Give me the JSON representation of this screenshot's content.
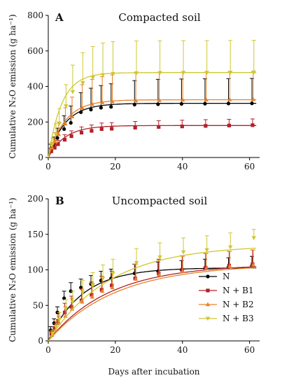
{
  "chart_data": [
    {
      "type": "scatter",
      "panel_letter": "A",
      "title": "Compacted soil",
      "ylabel": "Cumulative N₂O emission (g ha⁻¹)",
      "xlabel": "",
      "xlim": [
        0,
        63
      ],
      "ylim": [
        0,
        800
      ],
      "xticks": [
        0,
        20,
        40,
        60
      ],
      "yticks": [
        0,
        200,
        400,
        600,
        800
      ],
      "x": [
        1,
        2,
        3,
        5,
        7,
        10,
        13,
        16,
        19,
        26,
        33,
        40,
        47,
        54,
        61
      ],
      "series": [
        {
          "color": "#000000",
          "marker": "circle",
          "curve": [
            305,
            0.2
          ],
          "values": [
            50,
            75,
            110,
            160,
            195,
            255,
            270,
            280,
            285,
            298,
            300,
            302,
            303,
            304,
            305
          ],
          "errors": [
            25,
            40,
            55,
            75,
            95,
            110,
            120,
            125,
            130,
            135,
            140,
            140,
            140,
            140,
            140
          ]
        },
        {
          "color": "#b3202a",
          "marker": "square",
          "curve": [
            180,
            0.2
          ],
          "values": [
            35,
            55,
            75,
            100,
            120,
            140,
            150,
            160,
            162,
            168,
            172,
            175,
            178,
            180,
            182
          ],
          "errors": [
            12,
            18,
            22,
            28,
            30,
            32,
            33,
            34,
            34,
            35,
            35,
            35,
            35,
            35,
            35
          ]
        },
        {
          "color": "#e6822a",
          "marker": "triangle",
          "curve": [
            325,
            0.2
          ],
          "values": [
            55,
            90,
            130,
            190,
            230,
            280,
            300,
            310,
            315,
            320,
            322,
            324,
            325,
            326,
            327
          ],
          "errors": [
            30,
            50,
            70,
            90,
            110,
            130,
            140,
            145,
            150,
            155,
            155,
            155,
            155,
            155,
            155
          ]
        },
        {
          "color": "#cfc830",
          "marker": "triangle-down",
          "curve": [
            478,
            0.25
          ],
          "values": [
            75,
            130,
            190,
            290,
            370,
            420,
            450,
            465,
            472,
            476,
            477,
            478,
            478,
            479,
            480
          ],
          "errors": [
            35,
            60,
            85,
            120,
            150,
            170,
            175,
            180,
            180,
            180,
            180,
            180,
            180,
            180,
            180
          ]
        }
      ]
    },
    {
      "type": "scatter",
      "panel_letter": "B",
      "title": "Uncompacted soil",
      "ylabel": "Cumulative N₂O emission (g ha⁻¹)",
      "xlabel": "Days after incubation",
      "xlim": [
        0,
        63
      ],
      "ylim": [
        0,
        200
      ],
      "xticks": [
        0,
        20,
        40,
        60
      ],
      "yticks": [
        0,
        50,
        100,
        150,
        200
      ],
      "x": [
        1,
        2,
        3,
        5,
        7,
        10,
        13,
        16,
        19,
        26,
        33,
        40,
        47,
        54,
        61
      ],
      "legend": [
        "N",
        "N + B1",
        "N + B2",
        "N + B3"
      ],
      "legend_position": "bottom-right",
      "series": [
        {
          "name": "N",
          "color": "#000000",
          "marker": "circle",
          "curve": [
            103,
            0.1
          ],
          "values": [
            15,
            25,
            40,
            60,
            70,
            75,
            80,
            85,
            88,
            95,
            98,
            100,
            102,
            104,
            106
          ],
          "errors": [
            5,
            6,
            8,
            10,
            12,
            12,
            12,
            13,
            13,
            13,
            13,
            13,
            13,
            13,
            13
          ]
        },
        {
          "name": "N + B1",
          "color": "#b3202a",
          "marker": "square",
          "curve": [
            108,
            0.055
          ],
          "values": [
            10,
            18,
            28,
            40,
            48,
            57,
            65,
            72,
            78,
            88,
            95,
            100,
            103,
            106,
            108
          ],
          "errors": [
            5,
            7,
            10,
            13,
            15,
            17,
            18,
            19,
            20,
            20,
            20,
            20,
            20,
            20,
            20
          ]
        },
        {
          "name": "N + B2",
          "color": "#e6822a",
          "marker": "triangle",
          "curve": [
            108,
            0.05
          ],
          "values": [
            8,
            15,
            25,
            35,
            45,
            55,
            62,
            70,
            75,
            87,
            93,
            98,
            102,
            105,
            107
          ],
          "errors": [
            5,
            7,
            10,
            13,
            15,
            17,
            19,
            20,
            21,
            21,
            21,
            21,
            21,
            21,
            21
          ]
        },
        {
          "name": "N + B3",
          "color": "#cfc830",
          "marker": "triangle-down",
          "curve": [
            135,
            0.055
          ],
          "values": [
            10,
            20,
            30,
            45,
            55,
            68,
            78,
            88,
            95,
            110,
            118,
            125,
            128,
            132,
            145
          ],
          "errors": [
            5,
            8,
            10,
            13,
            15,
            17,
            18,
            19,
            20,
            20,
            20,
            20,
            20,
            20,
            12
          ]
        }
      ]
    }
  ]
}
